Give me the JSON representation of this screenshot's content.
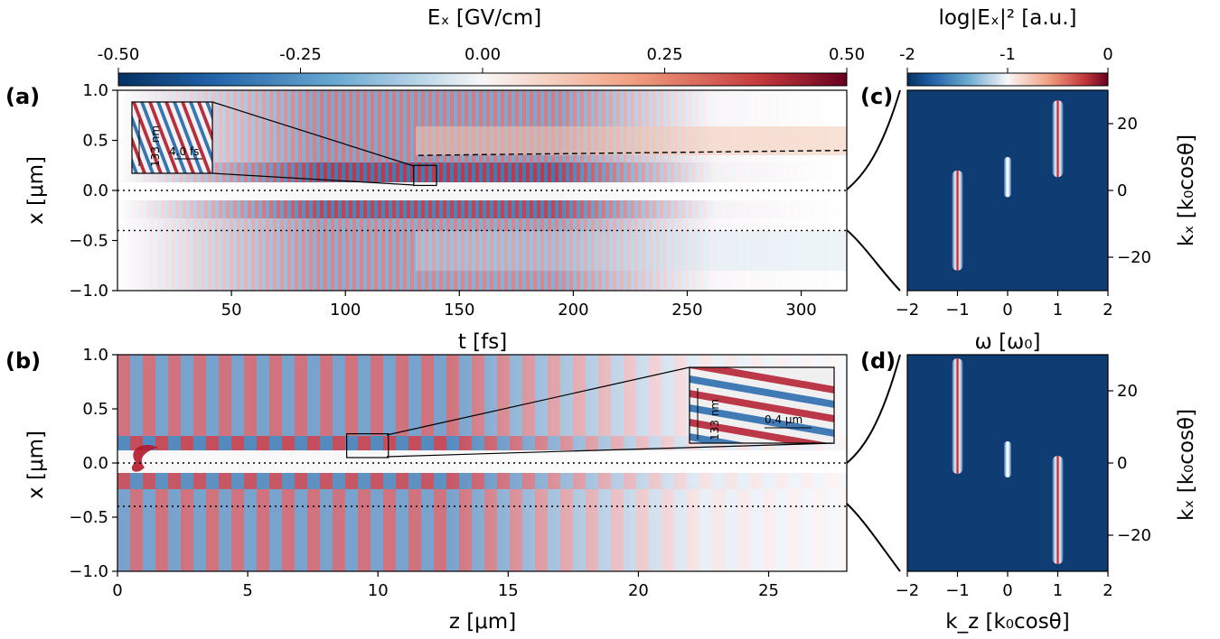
{
  "colors": {
    "neg": "#0a3a78",
    "mid": "#f7f7f7",
    "pos": "#6b0a1c",
    "background_map": "#0f3c73"
  },
  "panels": [
    {
      "key": "a",
      "label": "(a)"
    },
    {
      "key": "b",
      "label": "(b)"
    },
    {
      "key": "c",
      "label": "(c)"
    },
    {
      "key": "d",
      "label": "(d)"
    }
  ],
  "colorbars": [
    {
      "label": "Eₓ [GV/cm]",
      "ticks": [
        "-0.50",
        "-0.25",
        "0.00",
        "0.25",
        "0.50"
      ],
      "values": [
        -0.5,
        -0.25,
        0.0,
        0.25,
        0.5
      ],
      "range": [
        -0.5,
        0.5
      ]
    },
    {
      "label": "log|Eₓ|² [a.u.]",
      "ticks": [
        "-2",
        "-1",
        "0"
      ],
      "values": [
        -2,
        -1,
        0
      ],
      "range": [
        -2,
        0
      ]
    }
  ],
  "annotations": {
    "inset_a_height": "133 nm",
    "inset_a_width": "4.0 fs",
    "inset_b_height": "133 nm",
    "inset_b_width": "0.4 μm"
  },
  "chart_data": [
    {
      "panel": "a",
      "type": "heatmap",
      "xlabel": "t [fs]",
      "ylabel": "x [μm]",
      "xlim": [
        0,
        320
      ],
      "ylim": [
        -1.0,
        1.0
      ],
      "xticks": [
        50,
        100,
        150,
        200,
        250,
        300
      ],
      "yticks": [
        -1.0,
        -0.5,
        0.0,
        0.5,
        1.0
      ],
      "ytick_labels": [
        "−1.0",
        "−0.5",
        "0.0",
        "0.5",
        "1.0"
      ],
      "guides": [
        {
          "style": "dotted",
          "x": [
            0,
            320
          ],
          "y": [
            0.0,
            0.0
          ]
        },
        {
          "style": "dotted",
          "x": [
            0,
            320
          ],
          "y": [
            -0.4,
            -0.4
          ]
        },
        {
          "style": "dashed",
          "x": [
            132,
            320
          ],
          "y": [
            0.35,
            0.4
          ]
        }
      ],
      "zoom_box": {
        "x": [
          130,
          140
        ],
        "y": [
          0.05,
          0.25
        ]
      }
    },
    {
      "panel": "b",
      "type": "heatmap",
      "xlabel": "z [μm]",
      "ylabel": "x [μm]",
      "xlim": [
        0,
        28
      ],
      "ylim": [
        -1.0,
        1.0
      ],
      "xticks": [
        0,
        5,
        10,
        15,
        20,
        25
      ],
      "yticks": [
        -1.0,
        -0.5,
        0.0,
        0.5,
        1.0
      ],
      "ytick_labels": [
        "−1.0",
        "−0.5",
        "0.0",
        "0.5",
        "1.0"
      ],
      "guides": [
        {
          "style": "dotted",
          "x": [
            0,
            28
          ],
          "y": [
            0.0,
            0.0
          ]
        },
        {
          "style": "dotted",
          "x": [
            0,
            28
          ],
          "y": [
            -0.4,
            -0.4
          ]
        }
      ],
      "zoom_box": {
        "x": [
          8.8,
          10.4
        ],
        "y": [
          0.05,
          0.27
        ]
      }
    },
    {
      "panel": "c",
      "type": "heatmap",
      "xlabel": "ω [ω₀]",
      "ylabel": "kₓ [k₀cosθ]",
      "xlim": [
        -2,
        2
      ],
      "ylim": [
        -30,
        30
      ],
      "xticks": [
        -2,
        -1,
        0,
        1,
        2
      ],
      "xtick_labels": [
        "−2",
        "−1",
        "0",
        "1",
        "2"
      ],
      "yticks": [
        -20,
        0,
        20
      ],
      "ytick_labels": [
        "−20",
        "0",
        "20"
      ],
      "features": [
        {
          "x": -1,
          "y_range": [
            -24,
            6
          ],
          "intensity": 1.0
        },
        {
          "x": 0,
          "y_range": [
            -2,
            10
          ],
          "intensity": 0.5
        },
        {
          "x": 1,
          "y_range": [
            4,
            27
          ],
          "intensity": 1.0
        }
      ]
    },
    {
      "panel": "d",
      "type": "heatmap",
      "xlabel": "k_z [k₀cosθ]",
      "ylabel": "kₓ [k₀cosθ]",
      "xlim": [
        -2,
        2
      ],
      "ylim": [
        -30,
        30
      ],
      "xticks": [
        -2,
        -1,
        0,
        1,
        2
      ],
      "xtick_labels": [
        "−2",
        "−1",
        "0",
        "1",
        "2"
      ],
      "yticks": [
        -20,
        0,
        20
      ],
      "ytick_labels": [
        "−20",
        "0",
        "20"
      ],
      "features": [
        {
          "x": -1,
          "y_range": [
            -3,
            29
          ],
          "intensity": 1.0
        },
        {
          "x": 0,
          "y_range": [
            -4,
            6
          ],
          "intensity": 0.5
        },
        {
          "x": 1,
          "y_range": [
            -28,
            2
          ],
          "intensity": 1.0
        }
      ]
    }
  ]
}
